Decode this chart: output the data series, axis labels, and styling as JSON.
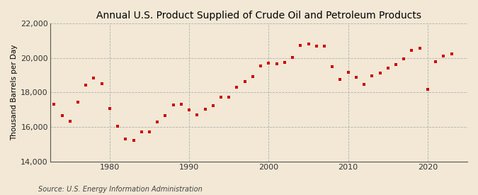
{
  "title": "Annual U.S. Product Supplied of Crude Oil and Petroleum Products",
  "ylabel": "Thousand Barrels per Day",
  "source": "Source: U.S. Energy Information Administration",
  "background_color": "#f2e8d5",
  "plot_bg_color": "#f2e8d5",
  "marker_color": "#cc0000",
  "years": [
    1973,
    1974,
    1975,
    1976,
    1977,
    1978,
    1979,
    1980,
    1981,
    1982,
    1983,
    1984,
    1985,
    1986,
    1987,
    1988,
    1989,
    1990,
    1991,
    1992,
    1993,
    1994,
    1995,
    1996,
    1997,
    1998,
    1999,
    2000,
    2001,
    2002,
    2003,
    2004,
    2005,
    2006,
    2007,
    2008,
    2009,
    2010,
    2011,
    2012,
    2013,
    2014,
    2015,
    2016,
    2017,
    2018,
    2019,
    2020,
    2021,
    2022,
    2023
  ],
  "values": [
    17308,
    16653,
    16322,
    17461,
    18431,
    18847,
    18513,
    17056,
    16058,
    15296,
    15231,
    15726,
    15726,
    16281,
    16665,
    17283,
    17325,
    16988,
    16714,
    17033,
    17237,
    17718,
    17725,
    18309,
    18621,
    18918,
    19519,
    19701,
    19649,
    19761,
    20033,
    20731,
    20802,
    20687,
    20680,
    19498,
    18771,
    19180,
    18882,
    18490,
    18961,
    19107,
    19396,
    19630,
    19958,
    20456,
    20543,
    18194,
    19786,
    20128,
    20250
  ],
  "xlim": [
    1972.5,
    2025
  ],
  "ylim": [
    14000,
    22000
  ],
  "yticks": [
    14000,
    16000,
    18000,
    20000,
    22000
  ],
  "xticks": [
    1980,
    1990,
    2000,
    2010,
    2020
  ],
  "title_fontsize": 10,
  "ylabel_fontsize": 7.5,
  "tick_fontsize": 8,
  "source_fontsize": 7,
  "marker_size": 10
}
